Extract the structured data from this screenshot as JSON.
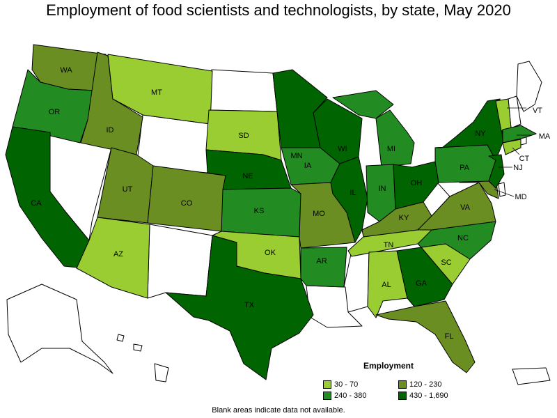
{
  "title": "Employment of food scientists and technologists, by state, May 2020",
  "colors": {
    "c1": "#9acd32",
    "c2": "#228b22",
    "c3": "#6b8e23",
    "c4": "#006400",
    "nodata": "#ffffff"
  },
  "legend": {
    "title": "Employment",
    "items": [
      {
        "label": "30 - 70",
        "color": "#9acd32"
      },
      {
        "label": "240 - 380",
        "color": "#228b22"
      },
      {
        "label": "120 - 230",
        "color": "#6b8e23"
      },
      {
        "label": "430 - 1,690",
        "color": "#006400"
      }
    ]
  },
  "note": "Blank areas indicate data not available.",
  "states": {
    "WA": "c3",
    "OR": "c2",
    "CA": "c4",
    "ID": "c3",
    "MT": "c1",
    "UT": "c3",
    "AZ": "c1",
    "CO": "c3",
    "SD": "c1",
    "NE": "c4",
    "KS": "c2",
    "OK": "c1",
    "TX": "c4",
    "MN": "c4",
    "IA": "c2",
    "MO": "c3",
    "AR": "c2",
    "WI": "c4",
    "IL": "c4",
    "MI": "c2",
    "IN": "c2",
    "OH": "c4",
    "KY": "c3",
    "TN": "c1",
    "AL": "c1",
    "GA": "c4",
    "FL": "c3",
    "SC": "c1",
    "NC": "c2",
    "VA": "c3",
    "PA": "c2",
    "NY": "c4",
    "VT": "c1",
    "MA": "c2",
    "CT": "c1",
    "NJ": "c4",
    "MD": "c3"
  }
}
